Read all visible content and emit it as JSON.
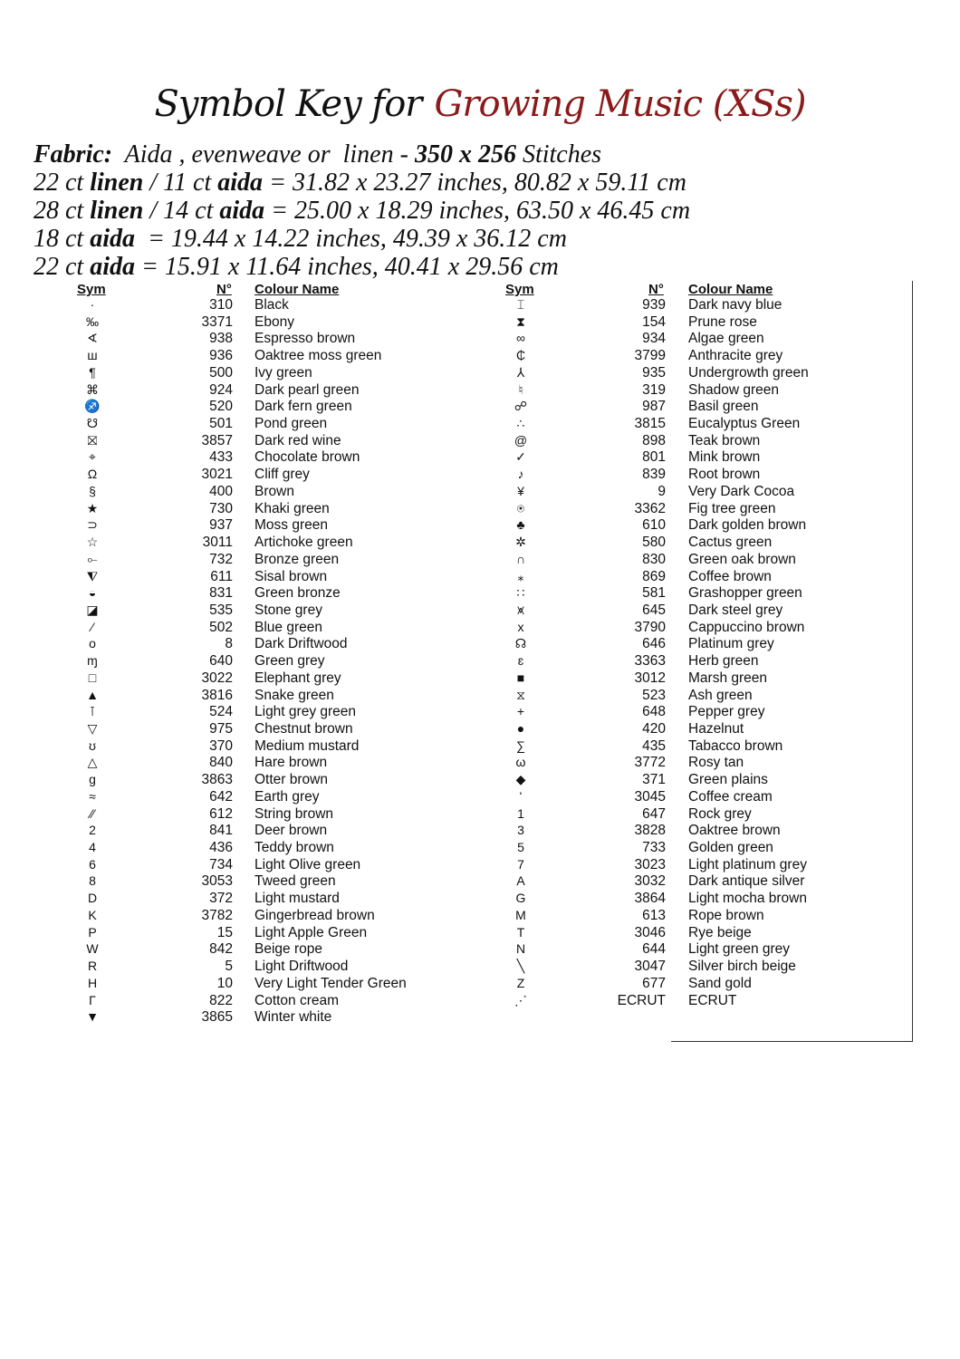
{
  "title": {
    "part1": "Symbol Key for",
    "part2": "Growing Music (XSs)",
    "accent_color": "#8b1a1a"
  },
  "fabric": [
    {
      "bold": "Fabric:",
      "text": "  Aida , evenweave or  linen - ",
      "bold2": "350 x 256",
      "text2": " Stitches"
    },
    {
      "text": "22 ct ",
      "bold": "linen",
      "text2": " / 11 ct ",
      "bold2": "aida",
      "text3": " = 31.82 x 23.27 inches, 80.82 x 59.11 cm"
    },
    {
      "text": "28 ct ",
      "bold": "linen",
      "text2": " / 14 ct ",
      "bold2": "aida",
      "text3": " = 25.00 x 18.29 inches, 63.50 x 46.45 cm"
    },
    {
      "text": "18 ct ",
      "bold": "aida",
      "text2": "  = 19.44 x 14.22 inches, 49.39 x 36.12 cm"
    },
    {
      "text": "22 ct ",
      "bold": "aida",
      "text2": " = 15.91 x 11.64 inches, 40.41 x 29.56 cm"
    }
  ],
  "headers": {
    "sym": "Sym",
    "num": "N°",
    "name": "Colour Name"
  },
  "left": [
    [
      "·",
      "310",
      "Black"
    ],
    [
      "‰",
      "3371",
      "Ebony"
    ],
    [
      "∢",
      "938",
      "Espresso brown"
    ],
    [
      "ш",
      "936",
      "Oaktree moss green"
    ],
    [
      "¶",
      "500",
      "Ivy green"
    ],
    [
      "⌘",
      "924",
      "Dark pearl green"
    ],
    [
      "♐",
      "520",
      "Dark fern green"
    ],
    [
      "☋",
      "501",
      "Pond green"
    ],
    [
      "⛝",
      "3857",
      "Dark red wine"
    ],
    [
      "⌖",
      "433",
      "Chocolate brown"
    ],
    [
      "Ω",
      "3021",
      "Cliff grey"
    ],
    [
      "§",
      "400",
      "Brown"
    ],
    [
      "★",
      "730",
      "Khaki green"
    ],
    [
      "⊃",
      "937",
      "Moss green"
    ],
    [
      "☆",
      "3011",
      "Artichoke green"
    ],
    [
      "⟜",
      "732",
      "Bronze green"
    ],
    [
      "⧨",
      "611",
      "Sisal brown"
    ],
    [
      "◒",
      "831",
      "Green bronze"
    ],
    [
      "◪",
      "535",
      "Stone grey"
    ],
    [
      "⁄",
      "502",
      "Blue green"
    ],
    [
      "o",
      "8",
      "Dark Driftwood"
    ],
    [
      "ɱ",
      "640",
      "Green grey"
    ],
    [
      "□",
      "3022",
      "Elephant grey"
    ],
    [
      "▲",
      "3816",
      "Snake green"
    ],
    [
      "⊺",
      "524",
      "Light grey green"
    ],
    [
      "▽",
      "975",
      "Chestnut brown"
    ],
    [
      "ʊ",
      "370",
      "Medium mustard"
    ],
    [
      "△",
      "840",
      "Hare brown"
    ],
    [
      "g",
      "3863",
      "Otter brown"
    ],
    [
      "≈",
      "642",
      "Earth grey"
    ],
    [
      "⁄⁄",
      "612",
      "String brown"
    ],
    [
      "2",
      "841",
      "Deer brown"
    ],
    [
      "4",
      "436",
      "Teddy brown"
    ],
    [
      "6",
      "734",
      "Light Olive green"
    ],
    [
      "8",
      "3053",
      "Tweed green"
    ],
    [
      "D",
      "372",
      "Light mustard"
    ],
    [
      "K",
      "3782",
      "Gingerbread brown"
    ],
    [
      "P",
      "15",
      "Light Apple Green"
    ],
    [
      "W",
      "842",
      "Beige rope"
    ],
    [
      "R",
      "5",
      "Light Driftwood"
    ],
    [
      "H",
      "10",
      "Very Light Tender Green"
    ],
    [
      "Γ",
      "822",
      "Cotton cream"
    ],
    [
      "▼",
      "3865",
      "Winter white"
    ]
  ],
  "right": [
    [
      "⌶",
      "939",
      "Dark navy blue"
    ],
    [
      "⧗",
      "154",
      "Prune rose"
    ],
    [
      "∞",
      "934",
      "Algae green"
    ],
    [
      "₵",
      "3799",
      "Anthracite grey"
    ],
    [
      "⅄",
      "935",
      "Undergrowth green"
    ],
    [
      "♮",
      "319",
      "Shadow green"
    ],
    [
      "☍",
      "987",
      "Basil green"
    ],
    [
      "∴",
      "3815",
      "Eucalyptus Green"
    ],
    [
      "@",
      "898",
      "Teak brown"
    ],
    [
      "✓",
      "801",
      "Mink brown"
    ],
    [
      "♪",
      "839",
      "Root brown"
    ],
    [
      "¥",
      "9",
      "Very Dark Cocoa"
    ],
    [
      "⍟",
      "3362",
      "Fig tree green"
    ],
    [
      "♣",
      "610",
      "Dark golden brown"
    ],
    [
      "✲",
      "580",
      "Cactus green"
    ],
    [
      "∩",
      "830",
      "Green oak brown"
    ],
    [
      "⁎",
      "869",
      "Coffee brown"
    ],
    [
      "∷",
      "581",
      "Grashopper green"
    ],
    [
      "⩙",
      "645",
      "Dark steel grey"
    ],
    [
      "x",
      "3790",
      "Cappuccino brown"
    ],
    [
      "☊",
      "646",
      "Platinum grey"
    ],
    [
      "ɛ",
      "3363",
      "Herb green"
    ],
    [
      "■",
      "3012",
      "Marsh green"
    ],
    [
      "⧖",
      "523",
      "Ash green"
    ],
    [
      "+",
      "648",
      "Pepper grey"
    ],
    [
      "●",
      "420",
      "Hazelnut"
    ],
    [
      "∑",
      "435",
      "Tabacco brown"
    ],
    [
      "ω",
      "3772",
      "Rosy tan"
    ],
    [
      "◆",
      "371",
      "Green plains"
    ],
    [
      "ʻ",
      "3045",
      "Coffee cream"
    ],
    [
      "1",
      "647",
      "Rock grey"
    ],
    [
      "3",
      "3828",
      "Oaktree brown"
    ],
    [
      "5",
      "733",
      "Golden green"
    ],
    [
      "7",
      "3023",
      "Light platinum grey"
    ],
    [
      "A",
      "3032",
      "Dark antique silver"
    ],
    [
      "G",
      "3864",
      "Light mocha brown"
    ],
    [
      "M",
      "613",
      "Rope brown"
    ],
    [
      "T",
      "3046",
      "Rye beige"
    ],
    [
      "N",
      "644",
      "Light green grey"
    ],
    [
      "╲",
      "3047",
      "Silver birch beige"
    ],
    [
      "Z",
      "677",
      "Sand gold"
    ],
    [
      "⋰",
      "ECRUT",
      "ECRUT"
    ]
  ]
}
